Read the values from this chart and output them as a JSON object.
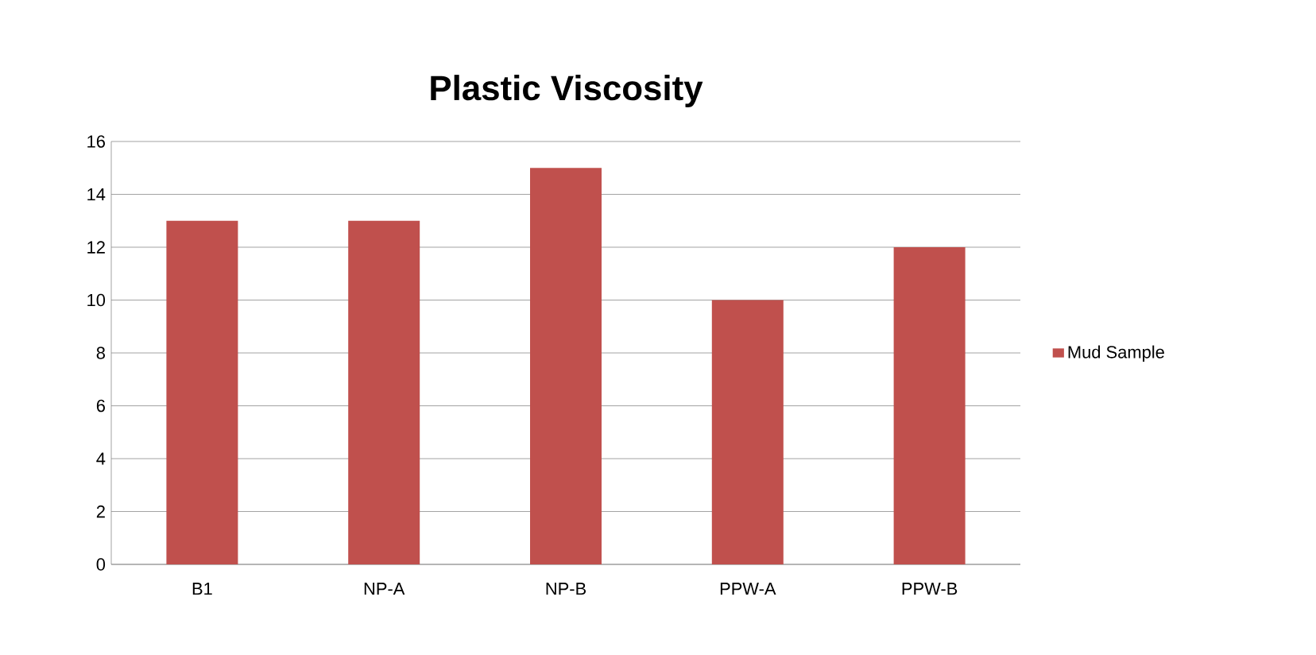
{
  "chart_data": {
    "type": "bar",
    "title": "Plastic Viscosity",
    "categories": [
      "B1",
      "NP-A",
      "NP-B",
      "PPW-A",
      "PPW-B"
    ],
    "series": [
      {
        "name": "Mud Sample",
        "color": "#c0504d",
        "values": [
          13,
          13,
          15,
          10,
          12
        ]
      }
    ],
    "ylim": [
      0,
      16
    ],
    "yticks": [
      0,
      2,
      4,
      6,
      8,
      10,
      12,
      14,
      16
    ],
    "grid": "y",
    "legend": "right"
  }
}
